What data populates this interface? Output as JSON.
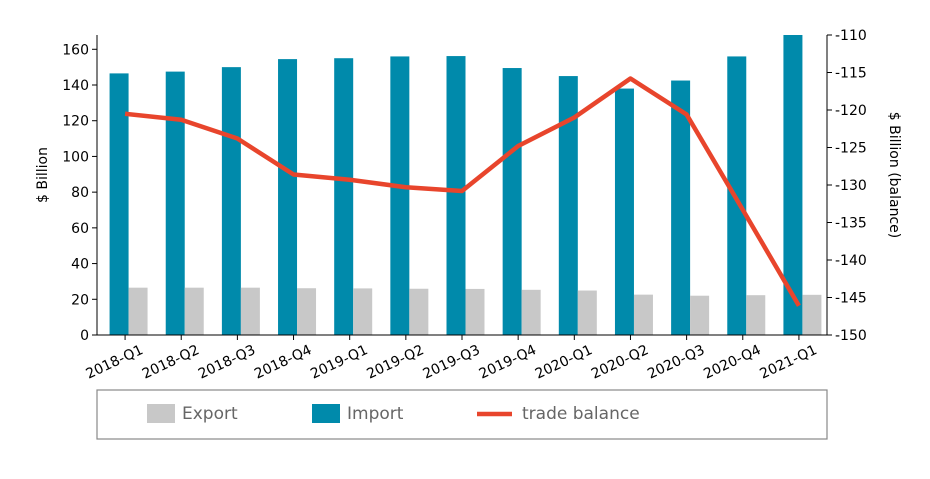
{
  "chart_data": {
    "type": "bar",
    "categories": [
      "2018-Q1",
      "2018-Q2",
      "2018-Q3",
      "2018-Q4",
      "2019-Q1",
      "2019-Q2",
      "2019-Q3",
      "2019-Q4",
      "2020-Q1",
      "2020-Q2",
      "2020-Q3",
      "2020-Q4",
      "2021-Q1"
    ],
    "series": [
      {
        "name": "Export",
        "kind": "bar",
        "axis": "left",
        "color": "#c8c8c8",
        "values": [
          26.5,
          26.5,
          26.5,
          26.2,
          26.1,
          25.9,
          25.8,
          25.3,
          24.9,
          22.6,
          22.0,
          22.3,
          22.5
        ]
      },
      {
        "name": "Import",
        "kind": "bar",
        "axis": "left",
        "color": "#008aab",
        "values": [
          146.5,
          147.5,
          150.0,
          154.5,
          155.0,
          156.0,
          156.2,
          149.5,
          145.0,
          138.0,
          142.5,
          156.0,
          168.0
        ]
      },
      {
        "name": "trade balance",
        "kind": "line",
        "axis": "right",
        "color": "#e8452c",
        "values": [
          -120.5,
          -121.3,
          -123.8,
          -128.6,
          -129.3,
          -130.3,
          -130.8,
          -124.8,
          -121.0,
          -115.8,
          -120.6,
          -133.3,
          -146.1
        ]
      }
    ],
    "ylabel": "$ Billion",
    "ylim": [
      0,
      168
    ],
    "yticks": [
      0,
      20,
      40,
      60,
      80,
      100,
      120,
      140,
      160
    ],
    "y2label": "$ Billion (balance)",
    "y2lim": [
      -150,
      -110
    ],
    "y2ticks": [
      -110,
      -115,
      -120,
      -125,
      -130,
      -135,
      -140,
      -145,
      -150
    ],
    "grid": false,
    "legend_position": "bottom"
  }
}
